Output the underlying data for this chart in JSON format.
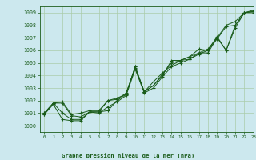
{
  "title": "Graphe pression niveau de la mer (hPa)",
  "bg_color": "#cce8ee",
  "line_color": "#1a5c1a",
  "grid_color": "#aaccaa",
  "xlim": [
    -0.5,
    23
  ],
  "ylim": [
    999.5,
    1009.5
  ],
  "yticks": [
    1000,
    1001,
    1002,
    1003,
    1004,
    1005,
    1006,
    1007,
    1008,
    1009
  ],
  "xticks": [
    0,
    1,
    2,
    3,
    4,
    5,
    6,
    7,
    8,
    9,
    10,
    11,
    12,
    13,
    14,
    15,
    16,
    17,
    18,
    19,
    20,
    21,
    22,
    23
  ],
  "series1": [
    1001.0,
    1001.8,
    1001.8,
    1000.8,
    1000.7,
    1001.1,
    1001.1,
    1002.0,
    1002.2,
    1002.5,
    1004.7,
    1002.7,
    1003.2,
    1004.0,
    1005.2,
    1005.2,
    1005.5,
    1006.1,
    1006.0,
    1007.1,
    1006.0,
    1008.0,
    1009.0,
    1009.2
  ],
  "series2": [
    1001.0,
    1001.8,
    1001.0,
    1000.5,
    1000.5,
    1001.1,
    1001.1,
    1001.2,
    1002.0,
    1002.5,
    1004.7,
    1002.7,
    1003.5,
    1004.2,
    1004.8,
    1005.2,
    1005.3,
    1005.8,
    1006.1,
    1007.0,
    1006.0,
    1007.8,
    1009.0,
    1009.1
  ],
  "series3": [
    1000.9,
    1001.8,
    1001.9,
    1000.9,
    1001.0,
    1001.2,
    1001.2,
    1002.0,
    1002.1,
    1002.6,
    1004.6,
    1002.7,
    1003.2,
    1004.1,
    1005.0,
    1005.2,
    1005.5,
    1005.8,
    1005.8,
    1007.0,
    1008.0,
    1008.3,
    1009.0,
    1009.1
  ],
  "series4": [
    1000.9,
    1001.7,
    1000.5,
    1000.4,
    1000.4,
    1001.1,
    1001.0,
    1001.5,
    1001.9,
    1002.4,
    1004.5,
    1002.6,
    1003.0,
    1003.9,
    1004.7,
    1005.0,
    1005.3,
    1005.7,
    1006.0,
    1006.9,
    1007.9,
    1008.0,
    1009.0,
    1009.0
  ]
}
